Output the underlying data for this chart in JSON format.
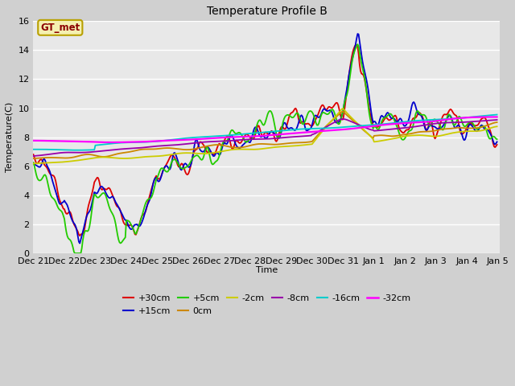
{
  "title": "Temperature Profile B",
  "xlabel": "Time",
  "ylabel": "Temperature(C)",
  "ylim": [
    0,
    16
  ],
  "fig_bg": "#d0d0d0",
  "plot_bg": "#e8e8e8",
  "legend_label": "GT_met",
  "legend_box_facecolor": "#f5f0b0",
  "legend_box_edgecolor": "#b8a000",
  "legend_label_color": "#8B0000",
  "lines": {
    "+30cm": {
      "color": "#dd0000",
      "lw": 1.3
    },
    "+15cm": {
      "color": "#0000cc",
      "lw": 1.3
    },
    "+5cm": {
      "color": "#22cc00",
      "lw": 1.3
    },
    "0cm": {
      "color": "#cc8800",
      "lw": 1.3
    },
    "-2cm": {
      "color": "#cccc00",
      "lw": 1.3
    },
    "-8cm": {
      "color": "#9900aa",
      "lw": 1.3
    },
    "-16cm": {
      "color": "#00cccc",
      "lw": 1.3
    },
    "-32cm": {
      "color": "#ff00ff",
      "lw": 1.6
    }
  },
  "xtick_labels": [
    "Dec 21",
    "Dec 22",
    "Dec 23",
    "Dec 24",
    "Dec 25",
    "Dec 26",
    "Dec 27",
    "Dec 28",
    "Dec 29",
    "Dec 30",
    "Dec 31",
    "Jan 1",
    "Jan 2",
    "Jan 3",
    "Jan 4",
    "Jan 5"
  ],
  "yticks": [
    0,
    2,
    4,
    6,
    8,
    10,
    12,
    14,
    16
  ],
  "title_fontsize": 10,
  "axis_label_fontsize": 8,
  "tick_fontsize": 8,
  "legend_fontsize": 8,
  "num_points": 480
}
